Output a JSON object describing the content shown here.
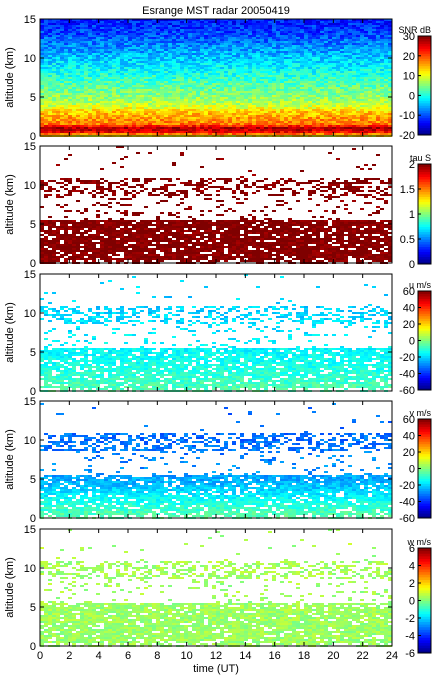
{
  "title": "Esrange MST radar 20050419",
  "colormap": [
    "#00007f",
    "#0000ff",
    "#007fff",
    "#00ffff",
    "#7fff7f",
    "#ffff00",
    "#ff7f00",
    "#ff0000",
    "#7f0000"
  ],
  "chart_data": [
    {
      "type": "heatmap",
      "title": "Esrange MST radar 20050419",
      "xlabel": "",
      "ylabel": "altitude (km)",
      "xlim": [
        0,
        24
      ],
      "ylim": [
        0,
        15
      ],
      "yticks": [
        0,
        5,
        10,
        15
      ],
      "colorbar": {
        "label": "SNR dB",
        "range": [
          -20,
          30
        ],
        "ticks": [
          -20,
          -10,
          0,
          10,
          20,
          30
        ]
      },
      "fill": {
        "coverage": "full",
        "profile": [
          [
            0,
            12
          ],
          [
            0.5,
            24
          ],
          [
            1,
            28
          ],
          [
            1.5,
            18
          ],
          [
            3,
            14
          ],
          [
            4,
            8
          ],
          [
            5,
            6
          ],
          [
            7,
            2
          ],
          [
            10,
            -4
          ],
          [
            13,
            -10
          ],
          [
            15,
            -13
          ]
        ]
      }
    },
    {
      "type": "heatmap",
      "xlabel": "",
      "ylabel": "altitude (km)",
      "xlim": [
        0,
        24
      ],
      "ylim": [
        0,
        15
      ],
      "yticks": [
        0,
        5,
        10,
        15
      ],
      "colorbar": {
        "label": "tau S",
        "range": [
          0,
          2
        ],
        "ticks": [
          0,
          0.5,
          1,
          1.5,
          2
        ]
      },
      "fill": {
        "coverage": "sparse",
        "profile": [
          [
            0,
            2
          ],
          [
            15,
            2
          ]
        ]
      }
    },
    {
      "type": "heatmap",
      "xlabel": "",
      "ylabel": "altitude (km)",
      "xlim": [
        0,
        24
      ],
      "ylim": [
        0,
        15
      ],
      "yticks": [
        0,
        5,
        10,
        15
      ],
      "colorbar": {
        "label": "u m/s",
        "range": [
          -60,
          60
        ],
        "ticks": [
          -60,
          -40,
          -20,
          0,
          20,
          40,
          60
        ]
      },
      "fill": {
        "coverage": "sparse",
        "profile": [
          [
            0,
            -5
          ],
          [
            3,
            -12
          ],
          [
            6,
            -16
          ],
          [
            10,
            -20
          ],
          [
            15,
            -20
          ]
        ]
      }
    },
    {
      "type": "heatmap",
      "xlabel": "",
      "ylabel": "altitude (km)",
      "xlim": [
        0,
        24
      ],
      "ylim": [
        0,
        15
      ],
      "yticks": [
        0,
        5,
        10,
        15
      ],
      "colorbar": {
        "label": "v m/s",
        "range": [
          -60,
          60
        ],
        "ticks": [
          -60,
          -40,
          -20,
          0,
          20,
          40,
          60
        ]
      },
      "fill": {
        "coverage": "sparse",
        "profile": [
          [
            0,
            -4
          ],
          [
            2,
            -12
          ],
          [
            4,
            -22
          ],
          [
            6,
            -28
          ],
          [
            10,
            -32
          ],
          [
            15,
            -32
          ]
        ]
      }
    },
    {
      "type": "heatmap",
      "xlabel": "time (UT)",
      "ylabel": "altitude (km)",
      "xlim": [
        0,
        24
      ],
      "xticks": [
        0,
        2,
        4,
        6,
        8,
        10,
        12,
        14,
        16,
        18,
        20,
        22,
        24
      ],
      "ylim": [
        0,
        15
      ],
      "yticks": [
        0,
        5,
        10,
        15
      ],
      "colorbar": {
        "label": "w m/s",
        "range": [
          -6,
          6
        ],
        "ticks": [
          -6,
          -4,
          -2,
          0,
          2,
          4,
          6
        ]
      },
      "fill": {
        "coverage": "sparse",
        "profile": [
          [
            0,
            0.3
          ],
          [
            15,
            0.5
          ]
        ]
      }
    }
  ]
}
